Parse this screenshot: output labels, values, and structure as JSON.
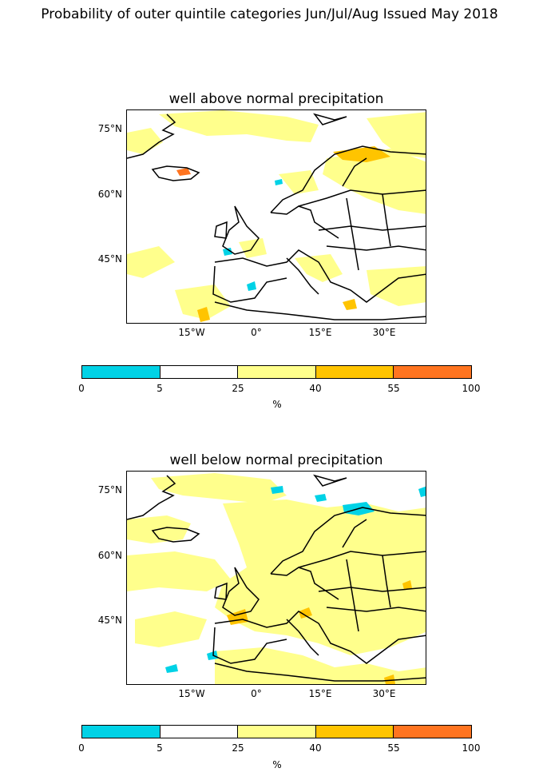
{
  "figure": {
    "title": "Probability of outer quintile categories Jun/Jul/Aug Issued May 2018"
  },
  "panels": [
    {
      "title": "well above normal precipitation"
    },
    {
      "title": "well below normal precipitation"
    }
  ],
  "axes": {
    "lat_labels": [
      "75°N",
      "60°N",
      "45°N"
    ],
    "lon_labels": [
      "15°W",
      "0°",
      "15°E",
      "30°E"
    ]
  },
  "colorbar": {
    "ticks": [
      "0",
      "5",
      "25",
      "40",
      "55",
      "100"
    ],
    "unit": "%",
    "colors": [
      "#00d2e6",
      "#ffffff",
      "#ffff8c",
      "#ffc400",
      "#ff7420"
    ]
  }
}
